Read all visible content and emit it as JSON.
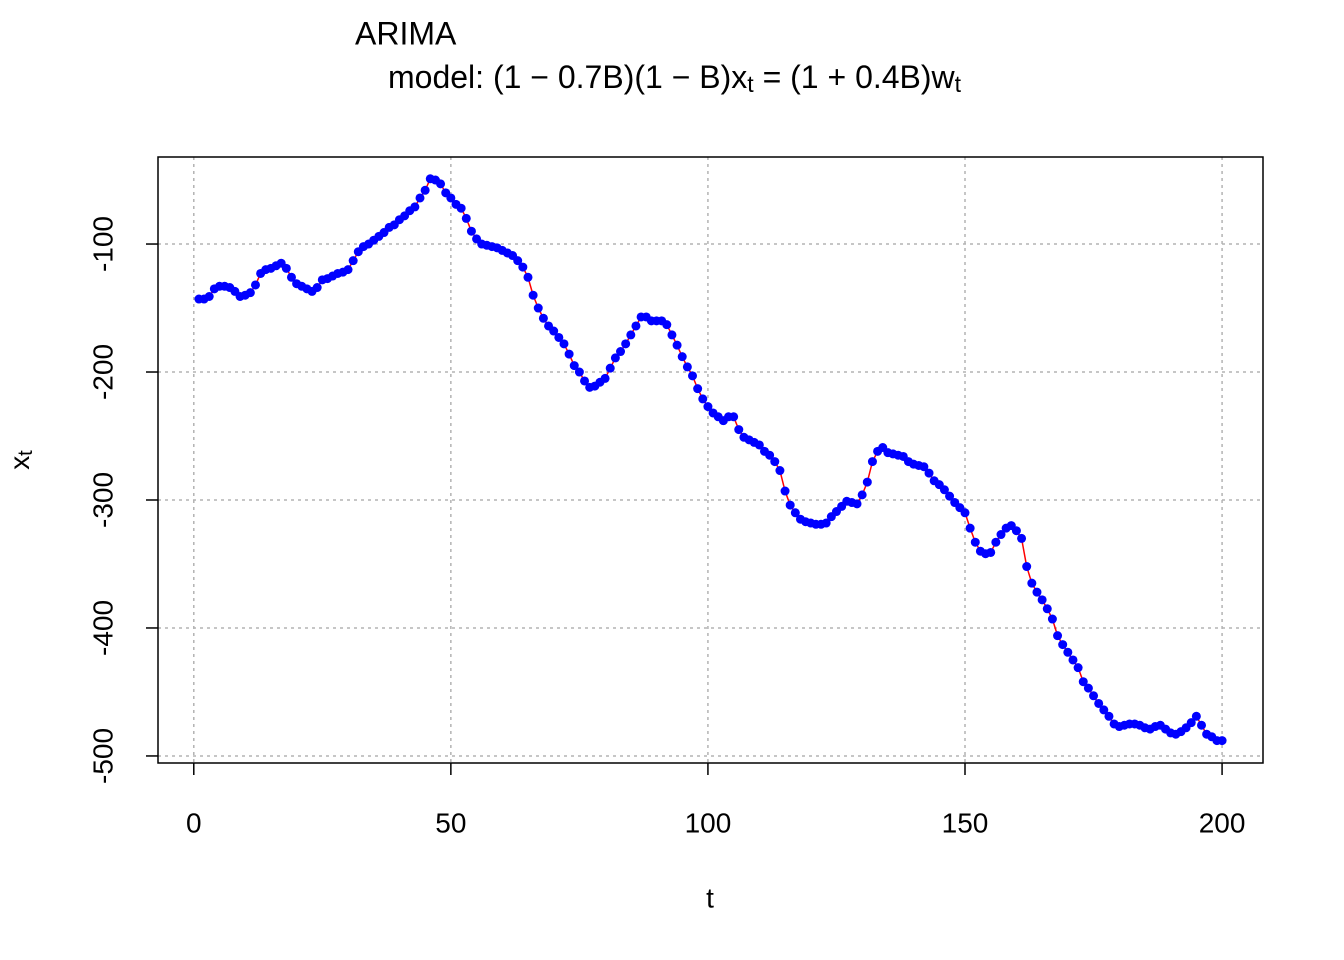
{
  "chart_data": {
    "type": "line",
    "title": "ARIMA",
    "subtitle": [
      "model: (1 − 0.7B)(1 − B)x",
      "t",
      " = (1 + 0.4B)w",
      "t"
    ],
    "xlabel": "t",
    "ylabel": [
      "x",
      "t"
    ],
    "x": [
      1,
      2,
      3,
      4,
      5,
      6,
      7,
      8,
      9,
      10,
      11,
      12,
      13,
      14,
      15,
      16,
      17,
      18,
      19,
      20,
      21,
      22,
      23,
      24,
      25,
      26,
      27,
      28,
      29,
      30,
      31,
      32,
      33,
      34,
      35,
      36,
      37,
      38,
      39,
      40,
      41,
      42,
      43,
      44,
      45,
      46,
      47,
      48,
      49,
      50,
      51,
      52,
      53,
      54,
      55,
      56,
      57,
      58,
      59,
      60,
      61,
      62,
      63,
      64,
      65,
      66,
      67,
      68,
      69,
      70,
      71,
      72,
      73,
      74,
      75,
      76,
      77,
      78,
      79,
      80,
      81,
      82,
      83,
      84,
      85,
      86,
      87,
      88,
      89,
      90,
      91,
      92,
      93,
      94,
      95,
      96,
      97,
      98,
      99,
      100,
      101,
      102,
      103,
      104,
      105,
      106,
      107,
      108,
      109,
      110,
      111,
      112,
      113,
      114,
      115,
      116,
      117,
      118,
      119,
      120,
      121,
      122,
      123,
      124,
      125,
      126,
      127,
      128,
      129,
      130,
      131,
      132,
      133,
      134,
      135,
      136,
      137,
      138,
      139,
      140,
      141,
      142,
      143,
      144,
      145,
      146,
      147,
      148,
      149,
      150,
      151,
      152,
      153,
      154,
      155,
      156,
      157,
      158,
      159,
      160,
      161,
      162,
      163,
      164,
      165,
      166,
      167,
      168,
      169,
      170,
      171,
      172,
      173,
      174,
      175,
      176,
      177,
      178,
      179,
      180,
      181,
      182,
      183,
      184,
      185,
      186,
      187,
      188,
      189,
      190,
      191,
      192,
      193,
      194,
      195,
      196,
      197,
      198,
      199,
      200
    ],
    "series": [
      {
        "color": "#0000ff",
        "line_color": "#ff0000",
        "values": [
          -143,
          -143,
          -141,
          -135,
          -133,
          -133,
          -134,
          -137,
          -141,
          -140,
          -138,
          -132,
          -123,
          -120,
          -119,
          -117,
          -115,
          -119,
          -126,
          -131,
          -133,
          -135,
          -137,
          -134,
          -128,
          -127,
          -125,
          -123,
          -122,
          -120,
          -113,
          -106,
          -102,
          -100,
          -97,
          -94,
          -91,
          -87,
          -85,
          -81,
          -78,
          -74,
          -71,
          -64,
          -58,
          -49,
          -50,
          -53,
          -60,
          -64,
          -69,
          -72,
          -80,
          -90,
          -96,
          -100,
          -101,
          -102,
          -103,
          -105,
          -107,
          -109,
          -113,
          -118,
          -126,
          -140,
          -150,
          -158,
          -164,
          -168,
          -173,
          -178,
          -186,
          -195,
          -200,
          -207,
          -212,
          -211,
          -208,
          -205,
          -197,
          -189,
          -184,
          -178,
          -171,
          -164,
          -157,
          -157,
          -160,
          -160,
          -160,
          -163,
          -171,
          -179,
          -188,
          -196,
          -203,
          -213,
          -221,
          -227,
          -232,
          -235,
          -238,
          -235,
          -235,
          -245,
          -251,
          -253,
          -255,
          -257,
          -262,
          -265,
          -270,
          -277,
          -293,
          -304,
          -310,
          -315,
          -317,
          -318,
          -319,
          -319,
          -318,
          -313,
          -309,
          -305,
          -301,
          -302,
          -303,
          -296,
          -286,
          -270,
          -262,
          -259,
          -263,
          -264,
          -265,
          -266,
          -270,
          -272,
          -273,
          -274,
          -279,
          -285,
          -288,
          -292,
          -297,
          -302,
          -306,
          -310,
          -322,
          -333,
          -340,
          -342,
          -341,
          -333,
          -327,
          -322,
          -320,
          -324,
          -330,
          -352,
          -365,
          -372,
          -378,
          -385,
          -393,
          -406,
          -413,
          -419,
          -425,
          -431,
          -442,
          -447,
          -453,
          -459,
          -464,
          -469,
          -475,
          -477,
          -476,
          -475,
          -475,
          -476,
          -478,
          -479,
          -477,
          -476,
          -479,
          -482,
          -483,
          -481,
          -478,
          -474,
          -469,
          -476,
          -483,
          -485,
          -488,
          -488
        ]
      }
    ],
    "xlim": [
      -6.96,
      207.96
    ],
    "ylim": [
      -505.5,
      -32
    ],
    "xticks": [
      0,
      50,
      100,
      150,
      200
    ],
    "yticks": [
      -500,
      -400,
      -300,
      -200,
      -100
    ],
    "grid": true
  }
}
